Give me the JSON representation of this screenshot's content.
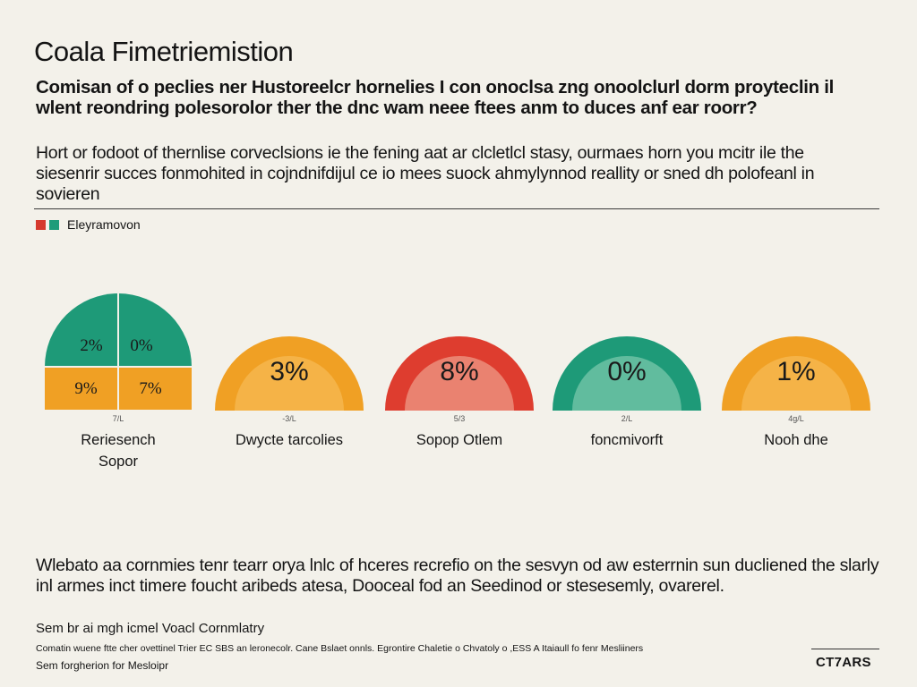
{
  "header": {
    "title": "Coala Fimetriemistion",
    "subtitle": "Comisan of o peclies ner Hustoreelcr hornelies I con onoclsa zng onoolclurl dorm proyteclin il wlent reondring polesorolor ther the dnc wam neee ftees anm to duces anf ear roorr?",
    "intro": "Hort or fodoot of thernlise corveclsions ie the fening aat ar clcletlcl stasy, ourmaes horn you mcitr ile the siesenrir succes fonmohited in cojndnifdijul ce io mees suock ahmylynnod reallity or sned dh polofeanl in sovieren"
  },
  "legend": {
    "label": "Eleyramovon",
    "colors": [
      "#d63a2e",
      "#1f9c7a"
    ]
  },
  "chart_data": {
    "type": "pie",
    "colors": {
      "orange": "#f0a024",
      "orange_inner": "#f5b347",
      "red": "#de3d2f",
      "red_inner": "#ea8270",
      "teal": "#1e9a78",
      "teal_inner": "#61bc9e"
    },
    "items": [
      {
        "name": "Reriesench",
        "sub": "Sopor",
        "tick": "7/L",
        "style": "quadrants",
        "quadrant_labels": [
          "2%",
          "0%",
          "9%",
          "7%"
        ],
        "quadrant_colors": [
          "#1e9a78",
          "#1e9a78",
          "#f0a024",
          "#f0a024"
        ]
      },
      {
        "name": "Dwycte tarcolies",
        "tick": "-3/L",
        "style": "ring",
        "value_label": "3%",
        "outer": "#f0a024",
        "inner": "#f5b347"
      },
      {
        "name": "Sopop Otlem",
        "tick": "5/3",
        "style": "ring",
        "value_label": "8%",
        "outer": "#de3d2f",
        "inner": "#ea8270"
      },
      {
        "name": "foncmivorft",
        "tick": "2/L",
        "style": "ring",
        "value_label": "0%",
        "outer": "#1e9a78",
        "inner": "#61bc9e"
      },
      {
        "name": "Nooh dhe",
        "tick": "4g/L",
        "style": "ring",
        "value_label": "1%",
        "outer": "#f0a024",
        "inner": "#f5b347"
      }
    ]
  },
  "footer": {
    "note": "Wlebato aa cornmies tenr tearr orya lnlc of hceres recrefio on the sesvyn od aw esterrnin sun ducliened the slarly inl armes inct timere foucht aribeds atesa, Dooceal fod an Seedinod or stesesemly, ovarerel.",
    "source_title": "Sem br ai mgh icmel Voacl Cornmlatry",
    "source_line": "Comatin wuene ftte cher ovettinel Trier EC SBS an leronecolr. Cane Bslaet onnls. Egrontire Chaletie o Chvatoly o ,ESS A Itaiaull fo fenr Mesliiners",
    "source_line2": "Sem forgherion for Mesloipr",
    "logo": "CT7ARS"
  }
}
